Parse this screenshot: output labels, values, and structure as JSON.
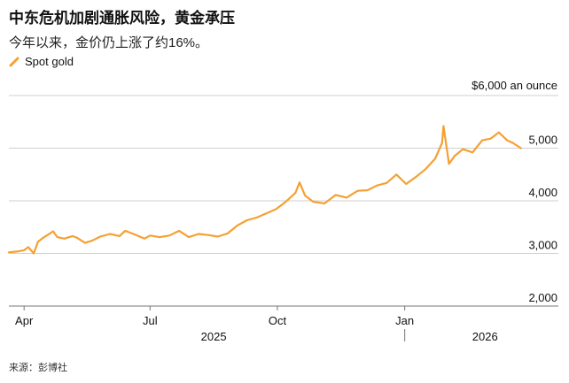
{
  "header": {
    "title": "中东危机加剧通胀风险，黄金承压",
    "subtitle": "今年以来，金价仍上涨了约16%。"
  },
  "source": "来源：彭博社",
  "colors": {
    "series": "#f5a033",
    "grid": "#cfcfcf",
    "axis": "#777777"
  },
  "chart_data": {
    "type": "line",
    "ylabel_unit": "$6,000 an ounce",
    "ylim": [
      2000,
      6000
    ],
    "y_ticks": [
      {
        "value": 5000,
        "label": "5,000"
      },
      {
        "value": 4000,
        "label": "4,000"
      },
      {
        "value": 3000,
        "label": "3,000"
      },
      {
        "value": 2000,
        "label": "2,000"
      }
    ],
    "x_range": [
      "2025-03-21",
      "2026-04-22"
    ],
    "x_ticks": [
      {
        "date": "2025-04-01",
        "label": "Apr"
      },
      {
        "date": "2025-07-01",
        "label": "Jul"
      },
      {
        "date": "2025-10-01",
        "label": "Oct"
      },
      {
        "date": "2026-01-01",
        "label": "Jan"
      }
    ],
    "year_labels": [
      {
        "label": "2025",
        "center": "2025-08-16"
      },
      {
        "label": "2026",
        "center": "2026-02-28"
      }
    ],
    "year_divider": "2026-01-01",
    "grid": true,
    "legend_position": "top-left",
    "series": [
      {
        "name": "Spot gold",
        "color": "#f5a033",
        "points": [
          [
            "2025-03-21",
            3020
          ],
          [
            "2025-03-28",
            3040
          ],
          [
            "2025-04-01",
            3060
          ],
          [
            "2025-04-04",
            3120
          ],
          [
            "2025-04-08",
            3000
          ],
          [
            "2025-04-11",
            3220
          ],
          [
            "2025-04-15",
            3300
          ],
          [
            "2025-04-18",
            3350
          ],
          [
            "2025-04-22",
            3420
          ],
          [
            "2025-04-25",
            3310
          ],
          [
            "2025-04-30",
            3280
          ],
          [
            "2025-05-06",
            3330
          ],
          [
            "2025-05-09",
            3300
          ],
          [
            "2025-05-15",
            3200
          ],
          [
            "2025-05-20",
            3240
          ],
          [
            "2025-05-26",
            3320
          ],
          [
            "2025-06-02",
            3370
          ],
          [
            "2025-06-09",
            3330
          ],
          [
            "2025-06-13",
            3430
          ],
          [
            "2025-06-20",
            3360
          ],
          [
            "2025-06-27",
            3280
          ],
          [
            "2025-07-01",
            3340
          ],
          [
            "2025-07-08",
            3310
          ],
          [
            "2025-07-15",
            3340
          ],
          [
            "2025-07-22",
            3430
          ],
          [
            "2025-07-29",
            3310
          ],
          [
            "2025-08-05",
            3370
          ],
          [
            "2025-08-12",
            3350
          ],
          [
            "2025-08-19",
            3320
          ],
          [
            "2025-08-26",
            3380
          ],
          [
            "2025-09-02",
            3530
          ],
          [
            "2025-09-09",
            3630
          ],
          [
            "2025-09-16",
            3680
          ],
          [
            "2025-09-23",
            3760
          ],
          [
            "2025-09-30",
            3840
          ],
          [
            "2025-10-07",
            3980
          ],
          [
            "2025-10-14",
            4150
          ],
          [
            "2025-10-17",
            4350
          ],
          [
            "2025-10-21",
            4100
          ],
          [
            "2025-10-27",
            3980
          ],
          [
            "2025-11-04",
            3950
          ],
          [
            "2025-11-12",
            4110
          ],
          [
            "2025-11-20",
            4060
          ],
          [
            "2025-11-28",
            4190
          ],
          [
            "2025-12-05",
            4200
          ],
          [
            "2025-12-12",
            4290
          ],
          [
            "2025-12-19",
            4340
          ],
          [
            "2025-12-26",
            4500
          ],
          [
            "2026-01-02",
            4320
          ],
          [
            "2026-01-09",
            4450
          ],
          [
            "2026-01-16",
            4600
          ],
          [
            "2026-01-23",
            4800
          ],
          [
            "2026-01-28",
            5100
          ],
          [
            "2026-01-29",
            5420
          ],
          [
            "2026-02-02",
            4700
          ],
          [
            "2026-02-06",
            4850
          ],
          [
            "2026-02-12",
            4980
          ],
          [
            "2026-02-19",
            4920
          ],
          [
            "2026-02-26",
            5150
          ],
          [
            "2026-03-04",
            5180
          ],
          [
            "2026-03-10",
            5300
          ],
          [
            "2026-03-16",
            5150
          ],
          [
            "2026-03-20",
            5100
          ],
          [
            "2026-03-23",
            5050
          ],
          [
            "2026-03-26",
            5000
          ]
        ]
      }
    ]
  }
}
